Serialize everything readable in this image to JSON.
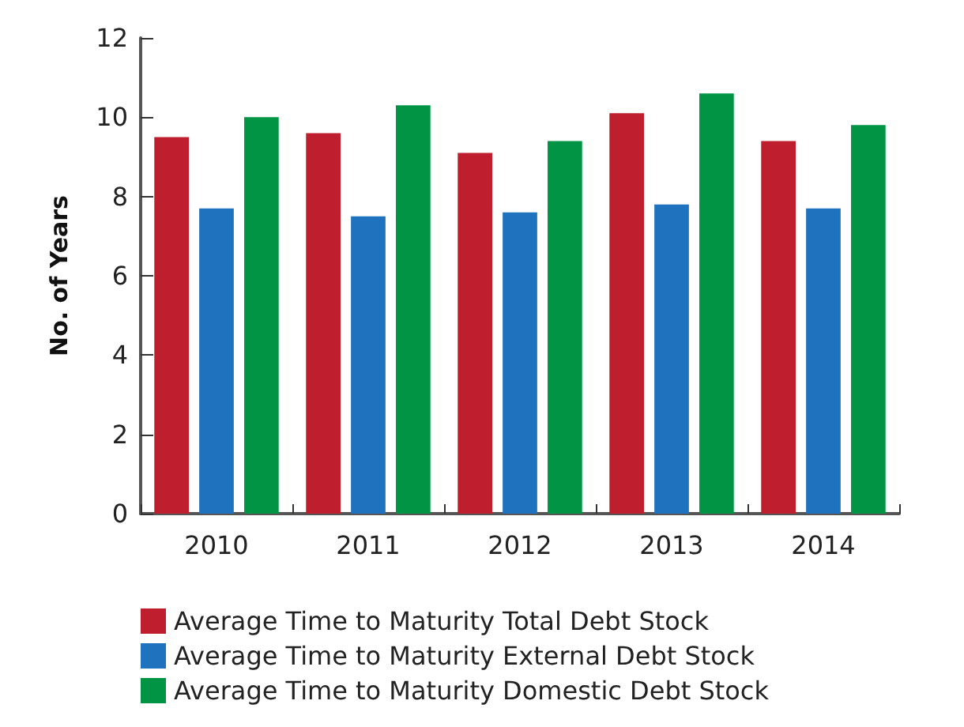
{
  "chart_data": {
    "type": "bar",
    "ylabel": "No. of Years",
    "categories": [
      "2010",
      "2011",
      "2012",
      "2013",
      "2014"
    ],
    "series": [
      {
        "name": "Average Time to Maturity Total Debt Stock",
        "color": "#be1e2d",
        "values": [
          9.5,
          9.6,
          9.1,
          10.1,
          9.4
        ]
      },
      {
        "name": "Average Time to Maturity External Debt Stock",
        "color": "#1f73be",
        "values": [
          7.7,
          7.5,
          7.6,
          7.8,
          7.7
        ]
      },
      {
        "name": "Average Time to Maturity Domestic Debt Stock",
        "color": "#009444",
        "values": [
          10.0,
          10.3,
          9.4,
          10.6,
          9.8
        ]
      }
    ],
    "ylim": [
      0,
      12
    ],
    "yticks": [
      0,
      2,
      4,
      6,
      8,
      10,
      12
    ],
    "grid": false,
    "legend": "bottom left"
  }
}
